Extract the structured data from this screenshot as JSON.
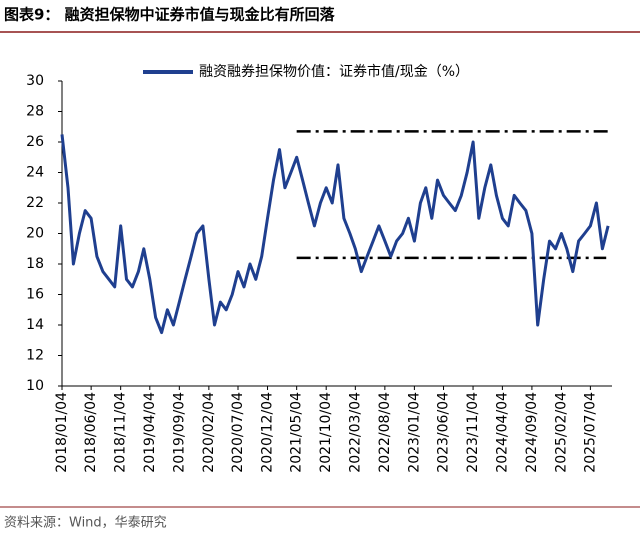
{
  "header": {
    "title": "图表9： 融资担保物中证券市值与现金比有所回落"
  },
  "chart_data": {
    "type": "line",
    "x": [
      "2018/01/04",
      "2018/02/04",
      "2018/03/04",
      "2018/04/04",
      "2018/05/04",
      "2018/06/04",
      "2018/07/04",
      "2018/08/04",
      "2018/09/04",
      "2018/10/04",
      "2018/11/04",
      "2018/12/04",
      "2019/01/04",
      "2019/02/04",
      "2019/03/04",
      "2019/04/04",
      "2019/05/04",
      "2019/06/04",
      "2019/07/04",
      "2019/08/04",
      "2019/09/04",
      "2019/10/04",
      "2019/11/04",
      "2019/12/04",
      "2020/01/04",
      "2020/02/04",
      "2020/03/04",
      "2020/04/04",
      "2020/05/04",
      "2020/06/04",
      "2020/07/04",
      "2020/08/04",
      "2020/09/04",
      "2020/10/04",
      "2020/11/04",
      "2020/12/04",
      "2021/01/04",
      "2021/02/04",
      "2021/03/04",
      "2021/04/04",
      "2021/05/04",
      "2021/06/04",
      "2021/07/04",
      "2021/08/04",
      "2021/09/04",
      "2021/10/04",
      "2021/11/04",
      "2021/12/04",
      "2022/01/04",
      "2022/02/04",
      "2022/03/04",
      "2022/04/04",
      "2022/05/04",
      "2022/06/04",
      "2022/07/04",
      "2022/08/04",
      "2022/09/04",
      "2022/10/04",
      "2022/11/04",
      "2022/12/04",
      "2023/01/04",
      "2023/02/04",
      "2023/03/04",
      "2023/04/04",
      "2023/05/04",
      "2023/06/04",
      "2023/07/04",
      "2023/08/04",
      "2023/09/04",
      "2023/10/04",
      "2023/11/04",
      "2023/12/04",
      "2024/01/04",
      "2024/02/04",
      "2024/03/04",
      "2024/04/04",
      "2024/05/04",
      "2024/06/04",
      "2024/07/04",
      "2024/08/04",
      "2024/09/04",
      "2024/10/04",
      "2024/11/04",
      "2024/12/04",
      "2025/01/04",
      "2025/02/04",
      "2025/03/04",
      "2025/04/04",
      "2025/05/04",
      "2025/06/04",
      "2025/07/04",
      "2025/08/04",
      "2025/09/04",
      "2025/10/04"
    ],
    "series": [
      {
        "name": "融资融券担保物价值：证券市值/现金（%）",
        "color": "#1f3f8f",
        "values": [
          26.5,
          23,
          18,
          20,
          21.5,
          21,
          18.5,
          17.5,
          17,
          16.5,
          20.5,
          17,
          16.5,
          17.5,
          19,
          17,
          14.5,
          13.5,
          15,
          14,
          15.5,
          17,
          18.5,
          20,
          20.5,
          17,
          14,
          15.5,
          15,
          16,
          17.5,
          16.5,
          18,
          17,
          18.5,
          21,
          23.5,
          25.5,
          23,
          24,
          25,
          23.5,
          22,
          20.5,
          22,
          23,
          22,
          24.5,
          21,
          20,
          19,
          17.5,
          18.5,
          19.5,
          20.5,
          19.5,
          18.5,
          19.5,
          20,
          21,
          19.5,
          22,
          23,
          21,
          23.5,
          22.5,
          22,
          21.5,
          22.5,
          24,
          26,
          21,
          23,
          24.5,
          22.5,
          21,
          20.5,
          22.5,
          22,
          21.5,
          20,
          14,
          17,
          19.5,
          19,
          20,
          19,
          17.5,
          19.5,
          20,
          20.5,
          22,
          19,
          20.5
        ]
      }
    ],
    "reference_lines": [
      {
        "value": 26.7,
        "x": [
          "2021/05/04",
          "2025/10/24"
        ]
      },
      {
        "value": 18.4,
        "x": [
          "2021/05/04",
          "2025/09/24"
        ]
      }
    ],
    "xlim": [
      "2018/01/04",
      "2025/10/24"
    ],
    "xticks": [
      "2018/01/04",
      "2018/06/04",
      "2018/11/04",
      "2019/04/04",
      "2019/09/04",
      "2020/02/04",
      "2020/07/04",
      "2020/12/04",
      "2021/05/04",
      "2021/10/04",
      "2022/03/04",
      "2022/08/04",
      "2023/01/04",
      "2023/06/04",
      "2023/11/04",
      "2024/04/04",
      "2024/09/04",
      "2025/02/04",
      "2025/07/04"
    ],
    "ylim": [
      10,
      30
    ],
    "yticks": [
      10,
      12,
      14,
      16,
      18,
      20,
      22,
      24,
      26,
      28,
      30
    ],
    "legend": "top"
  },
  "footer": {
    "source": "资料来源：Wind，华泰研究"
  }
}
